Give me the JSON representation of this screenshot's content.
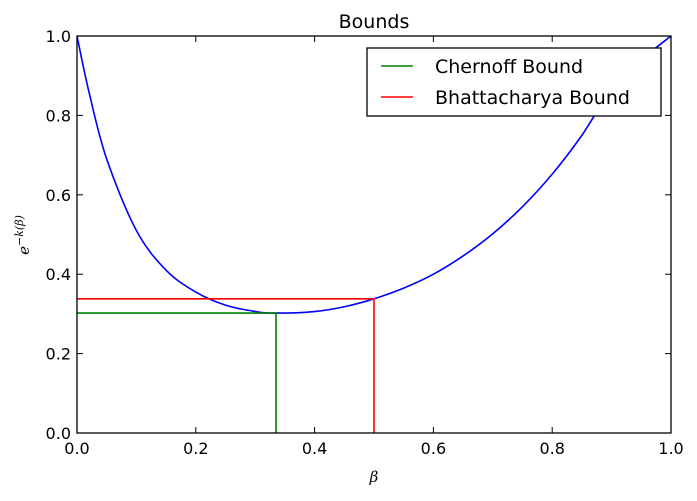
{
  "chart_data": {
    "type": "line",
    "title": "Bounds",
    "xlabel": "β",
    "ylabel": "e−k(β)",
    "xlim": [
      0.0,
      1.0
    ],
    "ylim": [
      0.0,
      1.0
    ],
    "x_ticks": [
      0.0,
      0.2,
      0.4,
      0.6,
      0.8,
      1.0
    ],
    "y_ticks": [
      0.0,
      0.2,
      0.4,
      0.6,
      0.8,
      1.0
    ],
    "x_tick_labels": [
      "0.0",
      "0.2",
      "0.4",
      "0.6",
      "0.8",
      "1.0"
    ],
    "y_tick_labels": [
      "0.0",
      "0.2",
      "0.4",
      "0.6",
      "0.8",
      "1.0"
    ],
    "grid": false,
    "legend_position": "top-right",
    "series": [
      {
        "color": "#0000ff",
        "x": [
          0.0,
          0.02,
          0.05,
          0.1,
          0.15,
          0.2,
          0.25,
          0.3,
          0.335,
          0.4,
          0.45,
          0.5,
          0.55,
          0.6,
          0.65,
          0.7,
          0.75,
          0.8,
          0.85,
          0.9,
          0.95,
          1.0
        ],
        "y": [
          1.0,
          0.86,
          0.69,
          0.51,
          0.41,
          0.355,
          0.322,
          0.306,
          0.302,
          0.306,
          0.318,
          0.338,
          0.365,
          0.4,
          0.446,
          0.502,
          0.57,
          0.652,
          0.75,
          0.866,
          0.94,
          1.0
        ]
      },
      {
        "name": "Chernoff Bound",
        "color": "#008000",
        "x": [
          0.0,
          0.335,
          0.335
        ],
        "y": [
          0.302,
          0.302,
          0.0
        ]
      },
      {
        "name": "Bhattacharya Bound",
        "color": "#ff0000",
        "x": [
          0.0,
          0.5,
          0.5
        ],
        "y": [
          0.338,
          0.338,
          0.0
        ]
      }
    ]
  }
}
